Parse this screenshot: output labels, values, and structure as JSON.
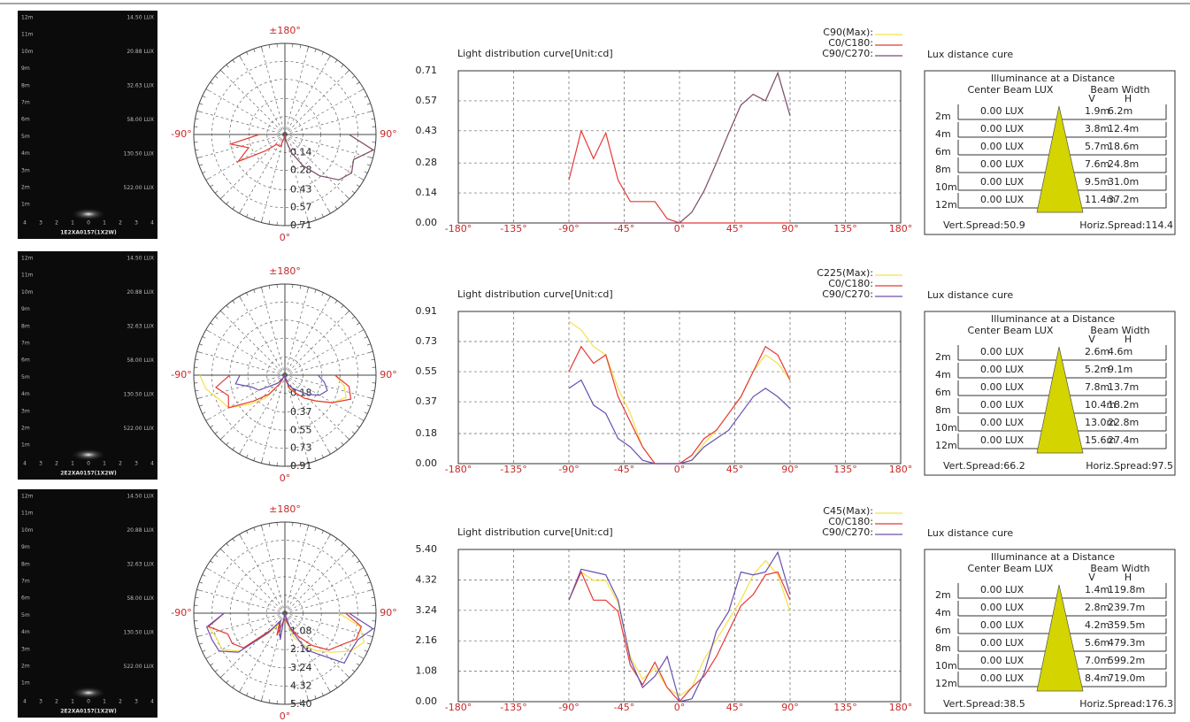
{
  "chart_data": [
    {
      "type": "polar",
      "thetaticks": [
        {
          "value": 180,
          "label": "±180°"
        },
        {
          "value": -90,
          "label": "-90°"
        },
        {
          "value": 90,
          "label": "90°"
        },
        {
          "value": 0,
          "label": "0°"
        }
      ],
      "rlim": [
        0,
        0.71
      ],
      "rticks": [
        0.14,
        0.28,
        0.43,
        0.57,
        0.71
      ],
      "x": [
        -90,
        -80,
        -70,
        -60,
        -50,
        -40,
        -30,
        -20,
        -10,
        0,
        10,
        20,
        30,
        40,
        50,
        60,
        70,
        80,
        90
      ],
      "series": [
        {
          "color": "#f2e24a",
          "values": [
            0,
            0,
            0,
            0,
            0,
            0,
            0,
            0,
            0,
            0,
            0.05,
            0.15,
            0.28,
            0.42,
            0.55,
            0.6,
            0.57,
            0.7,
            0.5
          ]
        },
        {
          "color": "#e53935",
          "values": [
            0.2,
            0.43,
            0.3,
            0.42,
            0.2,
            0.1,
            0.1,
            0.1,
            0.02,
            0,
            0,
            0,
            0,
            0,
            0,
            0,
            0,
            0,
            0
          ]
        },
        {
          "color": "#7a4c7c",
          "values": [
            0,
            0,
            0,
            0,
            0,
            0,
            0,
            0,
            0,
            0,
            0.05,
            0.15,
            0.28,
            0.42,
            0.55,
            0.6,
            0.57,
            0.7,
            0.5
          ]
        }
      ]
    },
    {
      "type": "line",
      "title": "Light distribution curve[Unit:cd]",
      "x": [
        -90,
        -80,
        -70,
        -60,
        -50,
        -40,
        -30,
        -20,
        -10,
        0,
        10,
        20,
        30,
        40,
        50,
        60,
        70,
        80,
        90
      ],
      "xlim": [
        -180,
        180
      ],
      "xticks": [
        {
          "value": -180,
          "label": "-180°"
        },
        {
          "value": -135,
          "label": "-135°"
        },
        {
          "value": -90,
          "label": "-90°"
        },
        {
          "value": -45,
          "label": "-45°"
        },
        {
          "value": 0,
          "label": "0°"
        },
        {
          "value": 45,
          "label": "45°"
        },
        {
          "value": 90,
          "label": "90°"
        },
        {
          "value": 135,
          "label": "135°"
        },
        {
          "value": 180,
          "label": "180°"
        }
      ],
      "ylim": [
        0,
        0.71
      ],
      "yticks": [
        {
          "value": 0,
          "label": "0.00"
        },
        0.14,
        0.28,
        0.43,
        0.57,
        0.71
      ],
      "grid": true,
      "series": [
        {
          "name": "C90(Max):",
          "color": "#f2e24a",
          "values": [
            0,
            0,
            0,
            0,
            0,
            0,
            0,
            0,
            0,
            0,
            0.05,
            0.15,
            0.28,
            0.42,
            0.55,
            0.6,
            0.57,
            0.7,
            0.5
          ]
        },
        {
          "name": "C0/C180:",
          "color": "#e53935",
          "values": [
            0.2,
            0.43,
            0.3,
            0.42,
            0.2,
            0.1,
            0.1,
            0.1,
            0.02,
            0,
            0,
            0,
            0,
            0,
            0,
            0,
            0,
            0,
            0
          ]
        },
        {
          "name": "C90/C270:",
          "color": "#7a4c7c",
          "values": [
            0,
            0,
            0,
            0,
            0,
            0,
            0,
            0,
            0,
            0,
            0.05,
            0.15,
            0.28,
            0.42,
            0.55,
            0.6,
            0.57,
            0.7,
            0.5
          ]
        }
      ]
    },
    {
      "type": "polar",
      "thetaticks": [
        {
          "value": 180,
          "label": "±180°"
        },
        {
          "value": -90,
          "label": "-90°"
        },
        {
          "value": 90,
          "label": "90°"
        },
        {
          "value": 0,
          "label": "0°"
        }
      ],
      "rlim": [
        0,
        0.91
      ],
      "rticks": [
        0.18,
        0.37,
        0.55,
        0.73,
        0.91
      ],
      "x": [
        -90,
        -80,
        -70,
        -60,
        -50,
        -40,
        -30,
        -20,
        -10,
        0,
        10,
        20,
        30,
        40,
        50,
        60,
        70,
        80,
        90
      ],
      "series": [
        {
          "color": "#f2e24a",
          "values": [
            0.85,
            0.8,
            0.7,
            0.65,
            0.45,
            0.3,
            0.1,
            0,
            0,
            0,
            0.02,
            0.12,
            0.2,
            0.3,
            0.4,
            0.55,
            0.65,
            0.6,
            0.5
          ]
        },
        {
          "color": "#e53935",
          "values": [
            0.55,
            0.7,
            0.6,
            0.65,
            0.4,
            0.25,
            0.1,
            0,
            0,
            0,
            0.05,
            0.15,
            0.2,
            0.3,
            0.4,
            0.55,
            0.7,
            0.65,
            0.5
          ]
        },
        {
          "color": "#6a4fb0",
          "values": [
            0.45,
            0.5,
            0.35,
            0.3,
            0.15,
            0.1,
            0.02,
            0,
            0,
            0,
            0.02,
            0.1,
            0.15,
            0.2,
            0.3,
            0.4,
            0.45,
            0.4,
            0.33
          ]
        }
      ]
    },
    {
      "type": "line",
      "title": "Light distribution curve[Unit:cd]",
      "x": [
        -90,
        -80,
        -70,
        -60,
        -50,
        -40,
        -30,
        -20,
        -10,
        0,
        10,
        20,
        30,
        40,
        50,
        60,
        70,
        80,
        90
      ],
      "xlim": [
        -180,
        180
      ],
      "xticks": [
        {
          "value": -180,
          "label": "-180°"
        },
        {
          "value": -135,
          "label": "-135°"
        },
        {
          "value": -90,
          "label": "-90°"
        },
        {
          "value": -45,
          "label": "-45°"
        },
        {
          "value": 0,
          "label": "0°"
        },
        {
          "value": 45,
          "label": "45°"
        },
        {
          "value": 90,
          "label": "90°"
        },
        {
          "value": 135,
          "label": "135°"
        },
        {
          "value": 180,
          "label": "180°"
        }
      ],
      "ylim": [
        0,
        0.91
      ],
      "yticks": [
        {
          "value": 0,
          "label": "0.00"
        },
        0.18,
        0.37,
        0.55,
        0.73,
        0.91
      ],
      "grid": true,
      "series": [
        {
          "name": "C225(Max):",
          "color": "#f2e24a",
          "values": [
            0.85,
            0.8,
            0.7,
            0.65,
            0.45,
            0.3,
            0.1,
            0,
            0,
            0,
            0.02,
            0.12,
            0.2,
            0.3,
            0.4,
            0.55,
            0.65,
            0.6,
            0.5
          ]
        },
        {
          "name": "C0/C180:",
          "color": "#e53935",
          "values": [
            0.55,
            0.7,
            0.6,
            0.65,
            0.4,
            0.25,
            0.1,
            0,
            0,
            0,
            0.05,
            0.15,
            0.2,
            0.3,
            0.4,
            0.55,
            0.7,
            0.65,
            0.5
          ]
        },
        {
          "name": "C90/C270:",
          "color": "#6a4fb0",
          "values": [
            0.45,
            0.5,
            0.35,
            0.3,
            0.15,
            0.1,
            0.02,
            0,
            0,
            0,
            0.02,
            0.1,
            0.15,
            0.2,
            0.3,
            0.4,
            0.45,
            0.4,
            0.33
          ]
        }
      ]
    },
    {
      "type": "polar",
      "thetaticks": [
        {
          "value": 180,
          "label": "±180°"
        },
        {
          "value": -90,
          "label": "-90°"
        },
        {
          "value": 90,
          "label": "90°"
        },
        {
          "value": 0,
          "label": "0°"
        }
      ],
      "rlim": [
        0,
        5.4
      ],
      "rticks": [
        1.08,
        2.16,
        3.24,
        4.32,
        {
          "value": 5.4,
          "label": "5.40"
        }
      ],
      "x": [
        -90,
        -80,
        -70,
        -60,
        -50,
        -40,
        -30,
        -20,
        -10,
        0,
        10,
        20,
        30,
        40,
        50,
        60,
        70,
        80,
        90
      ],
      "series": [
        {
          "color": "#f2e24a",
          "values": [
            3.6,
            4.6,
            4.3,
            4.3,
            3.5,
            1.6,
            0.8,
            1.2,
            0.5,
            0.2,
            0.5,
            1.5,
            2.2,
            2.9,
            3.6,
            4.5,
            5.0,
            4.5,
            3.2
          ]
        },
        {
          "color": "#e53935",
          "values": [
            3.6,
            4.6,
            3.6,
            3.6,
            3.2,
            1.3,
            0.6,
            1.4,
            0.5,
            0,
            0.5,
            0.9,
            1.6,
            2.5,
            3.4,
            3.8,
            4.5,
            4.6,
            3.6
          ]
        },
        {
          "color": "#6a4fb0",
          "values": [
            3.6,
            4.7,
            4.6,
            4.5,
            3.6,
            1.5,
            0.5,
            0.9,
            1.6,
            0,
            0.1,
            1.0,
            2.5,
            3.2,
            4.6,
            4.5,
            4.6,
            5.3,
            3.8
          ]
        }
      ]
    },
    {
      "type": "line",
      "title": "Light distribution curve[Unit:cd]",
      "x": [
        -90,
        -80,
        -70,
        -60,
        -50,
        -40,
        -30,
        -20,
        -10,
        0,
        10,
        20,
        30,
        40,
        50,
        60,
        70,
        80,
        90
      ],
      "xlim": [
        -180,
        180
      ],
      "xticks": [
        {
          "value": -180,
          "label": "-180°"
        },
        {
          "value": -135,
          "label": "-135°"
        },
        {
          "value": -90,
          "label": "-90°"
        },
        {
          "value": -45,
          "label": "-45°"
        },
        {
          "value": 0,
          "label": "0°"
        },
        {
          "value": 45,
          "label": "45°"
        },
        {
          "value": 90,
          "label": "90°"
        },
        {
          "value": 135,
          "label": "135°"
        },
        {
          "value": 180,
          "label": "180°"
        }
      ],
      "ylim": [
        0,
        5.4
      ],
      "yticks": [
        {
          "value": 0,
          "label": "0.00"
        },
        1.08,
        2.16,
        3.24,
        4.32,
        {
          "value": 5.4,
          "label": "5.40"
        }
      ],
      "grid": true,
      "series": [
        {
          "name": "C45(Max):",
          "color": "#f2e24a",
          "values": [
            3.6,
            4.6,
            4.3,
            4.3,
            3.5,
            1.6,
            0.8,
            1.2,
            0.5,
            0.2,
            0.5,
            1.5,
            2.2,
            2.9,
            3.6,
            4.5,
            5.0,
            4.5,
            3.2
          ]
        },
        {
          "name": "C0/C180:",
          "color": "#e53935",
          "values": [
            3.6,
            4.6,
            3.6,
            3.6,
            3.2,
            1.3,
            0.6,
            1.4,
            0.5,
            0,
            0.5,
            0.9,
            1.6,
            2.5,
            3.4,
            3.8,
            4.5,
            4.6,
            3.6
          ]
        },
        {
          "name": "C90/C270:",
          "color": "#6a4fb0",
          "values": [
            3.6,
            4.7,
            4.6,
            4.5,
            3.6,
            1.5,
            0.5,
            0.9,
            1.6,
            0,
            0.1,
            1.0,
            2.5,
            3.2,
            4.6,
            4.5,
            4.6,
            5.3,
            3.8
          ]
        }
      ]
    }
  ],
  "beam_images": [
    {
      "distance_labels": [
        "12m",
        "11m",
        "10m",
        "9m",
        "8m",
        "7m",
        "6m",
        "5m",
        "4m",
        "3m",
        "2m",
        "1m"
      ],
      "lux_labels": [
        "14.50 LUX",
        "20.88 LUX",
        "32.63 LUX",
        "58.00 LUX",
        "130.50 LUX",
        "522.00 LUX"
      ],
      "axis_labels": [
        "4",
        "3",
        "2",
        "1",
        "0",
        "1",
        "2",
        "3",
        "4"
      ],
      "model": "1E2XA0157(1X2W)"
    },
    {
      "distance_labels": [
        "12m",
        "11m",
        "10m",
        "9m",
        "8m",
        "7m",
        "6m",
        "5m",
        "4m",
        "3m",
        "2m",
        "1m"
      ],
      "lux_labels": [
        "14.50 LUX",
        "20.88 LUX",
        "32.63 LUX",
        "58.00 LUX",
        "130.50 LUX",
        "522.00 LUX"
      ],
      "axis_labels": [
        "4",
        "3",
        "2",
        "1",
        "0",
        "1",
        "2",
        "3",
        "4"
      ],
      "model": "2E2XA0157(1X2W)"
    },
    {
      "distance_labels": [
        "12m",
        "11m",
        "10m",
        "9m",
        "8m",
        "7m",
        "6m",
        "5m",
        "4m",
        "3m",
        "2m",
        "1m"
      ],
      "lux_labels": [
        "14.50 LUX",
        "20.88 LUX",
        "32.63 LUX",
        "58.00 LUX",
        "130.50 LUX",
        "522.00 LUX"
      ],
      "axis_labels": [
        "4",
        "3",
        "2",
        "1",
        "0",
        "1",
        "2",
        "3",
        "4"
      ],
      "model": "2E2XA0157(1X2W)"
    }
  ],
  "lux_tables": [
    {
      "title": "Lux distance cure",
      "heading": "Illuminance at a Distance",
      "col_lux": "Center Beam LUX",
      "col_width": "Beam Width",
      "col_v": "V",
      "col_h": "H",
      "rows": [
        [
          "2m",
          "0.00 LUX",
          "1.9m",
          "6.2m"
        ],
        [
          "4m",
          "0.00 LUX",
          "3.8m",
          "12.4m"
        ],
        [
          "6m",
          "0.00 LUX",
          "5.7m",
          "18.6m"
        ],
        [
          "8m",
          "0.00 LUX",
          "7.6m",
          "24.8m"
        ],
        [
          "10m",
          "0.00 LUX",
          "9.5m",
          "31.0m"
        ],
        [
          "12m",
          "0.00 LUX",
          "11.4m",
          "37.2m"
        ]
      ],
      "vert_spread": "Vert.Spread:50.9",
      "horiz_spread": "Horiz.Spread:114.4"
    },
    {
      "title": "Lux distance cure",
      "heading": "Illuminance at a Distance",
      "col_lux": "Center Beam LUX",
      "col_width": "Beam Width",
      "col_v": "V",
      "col_h": "H",
      "rows": [
        [
          "2m",
          "0.00 LUX",
          "2.6m",
          "4.6m"
        ],
        [
          "4m",
          "0.00 LUX",
          "5.2m",
          "9.1m"
        ],
        [
          "6m",
          "0.00 LUX",
          "7.8m",
          "13.7m"
        ],
        [
          "8m",
          "0.00 LUX",
          "10.4m",
          "18.2m"
        ],
        [
          "10m",
          "0.00 LUX",
          "13.0m",
          "22.8m"
        ],
        [
          "12m",
          "0.00 LUX",
          "15.6m",
          "27.4m"
        ]
      ],
      "vert_spread": "Vert.Spread:66.2",
      "horiz_spread": "Horiz.Spread:97.5"
    },
    {
      "title": "Lux distance cure",
      "heading": "Illuminance at a Distance",
      "col_lux": "Center Beam LUX",
      "col_width": "Beam Width",
      "col_v": "V",
      "col_h": "H",
      "rows": [
        [
          "2m",
          "0.00 LUX",
          "1.4m",
          "119.8m"
        ],
        [
          "4m",
          "0.00 LUX",
          "2.8m",
          "239.7m"
        ],
        [
          "6m",
          "0.00 LUX",
          "4.2m",
          "359.5m"
        ],
        [
          "8m",
          "0.00 LUX",
          "5.6m",
          "479.3m"
        ],
        [
          "10m",
          "0.00 LUX",
          "7.0m",
          "599.2m"
        ],
        [
          "12m",
          "0.00 LUX",
          "8.4m",
          "719.0m"
        ]
      ],
      "vert_spread": "Vert.Spread:38.5",
      "horiz_spread": "Horiz.Spread:176.3"
    }
  ]
}
